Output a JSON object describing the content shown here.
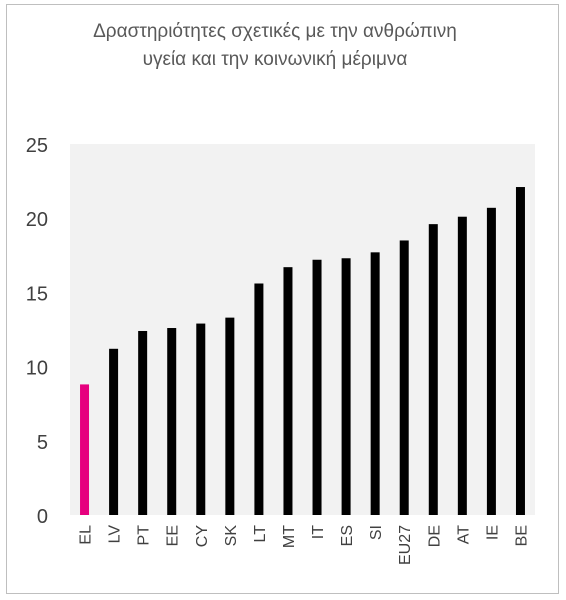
{
  "chart_data": {
    "type": "bar",
    "title": "Δραστηριότητες σχετικές με την ανθρώπινη υγεία και την κοινωνική μέριμνα",
    "categories": [
      "EL",
      "LV",
      "PT",
      "EE",
      "CY",
      "SK",
      "LT",
      "MT",
      "IT",
      "ES",
      "SI",
      "EU27",
      "DE",
      "AT",
      "IE",
      "BE"
    ],
    "values": [
      8.8,
      11.2,
      12.4,
      12.6,
      12.9,
      13.3,
      15.6,
      16.7,
      17.2,
      17.3,
      17.7,
      18.5,
      19.6,
      20.1,
      20.7,
      22.1
    ],
    "highlight_category": "EL",
    "bar_color": "#000000",
    "highlight_color": "#e6007e",
    "plot_background": "#f2f2f2",
    "ylim": [
      0,
      25
    ],
    "yticks": [
      0,
      5,
      10,
      15,
      20,
      25
    ],
    "xlabel": "",
    "ylabel": "",
    "grid": false,
    "legend": "none"
  }
}
